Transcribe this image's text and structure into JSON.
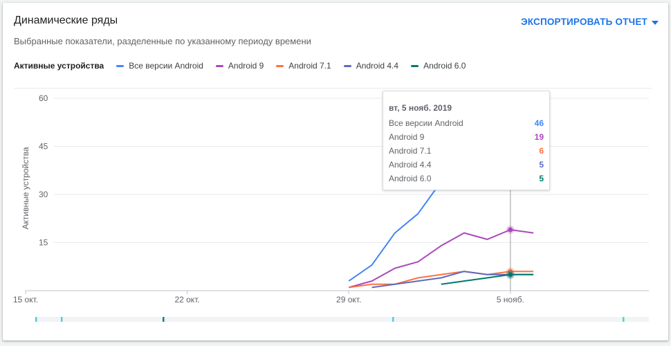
{
  "header": {
    "title": "Динамические ряды",
    "subtitle": "Выбранные показатели, разделенные по указанному периоду времени",
    "export_label": "ЭКСПОРТИРОВАТЬ ОТЧЕТ"
  },
  "legend": {
    "lead": "Активные устройства",
    "items": [
      "Все версии Android",
      "Android 9",
      "Android 7.1",
      "Android 4.4",
      "Android 6.0"
    ]
  },
  "tooltip": {
    "date": "вт, 5 нояб. 2019",
    "rows": [
      {
        "label": "Все версии Android",
        "value": "46"
      },
      {
        "label": "Android 9",
        "value": "19"
      },
      {
        "label": "Android 7.1",
        "value": "6"
      },
      {
        "label": "Android 4.4",
        "value": "5"
      },
      {
        "label": "Android 6.0",
        "value": "5"
      }
    ]
  },
  "chart_data": {
    "type": "line",
    "title": "",
    "xlabel": "",
    "ylabel": "Активные устройства",
    "ylim": [
      0,
      60
    ],
    "yticks": [
      15,
      30,
      45,
      60
    ],
    "xlim": [
      "2019-10-15",
      "2019-11-11"
    ],
    "xticks": [
      {
        "date": "2019-10-15",
        "label": "15 окт."
      },
      {
        "date": "2019-10-22",
        "label": "22 окт."
      },
      {
        "date": "2019-10-29",
        "label": "29 окт."
      },
      {
        "date": "2019-11-05",
        "label": "5 нояб."
      }
    ],
    "highlight_date": "2019-11-05",
    "grid": true,
    "legend_position": "top",
    "series": [
      {
        "name": "Все версии Android",
        "color": "#4285f4",
        "x": [
          "2019-10-29",
          "2019-10-30",
          "2019-10-31",
          "2019-11-01",
          "2019-11-02",
          "2019-11-03",
          "2019-11-04",
          "2019-11-05",
          "2019-11-06"
        ],
        "values": [
          3,
          8,
          18,
          24,
          34,
          40,
          38,
          46,
          45
        ]
      },
      {
        "name": "Android 9",
        "color": "#ab47bc",
        "x": [
          "2019-10-29",
          "2019-10-30",
          "2019-10-31",
          "2019-11-01",
          "2019-11-02",
          "2019-11-03",
          "2019-11-04",
          "2019-11-05",
          "2019-11-06"
        ],
        "values": [
          1,
          3,
          7,
          9,
          14,
          18,
          16,
          19,
          18
        ]
      },
      {
        "name": "Android 7.1",
        "color": "#ff7043",
        "x": [
          "2019-10-29",
          "2019-10-30",
          "2019-10-31",
          "2019-11-01",
          "2019-11-02",
          "2019-11-03",
          "2019-11-04",
          "2019-11-05",
          "2019-11-06"
        ],
        "values": [
          1,
          2,
          2,
          4,
          5,
          6,
          5,
          6,
          6
        ]
      },
      {
        "name": "Android 4.4",
        "color": "#5c6bc0",
        "x": [
          "2019-10-30",
          "2019-10-31",
          "2019-11-01",
          "2019-11-02",
          "2019-11-03",
          "2019-11-04",
          "2019-11-05",
          "2019-11-06"
        ],
        "values": [
          1,
          2,
          3,
          4,
          6,
          5,
          5,
          5
        ]
      },
      {
        "name": "Android 6.0",
        "color": "#00796b",
        "x": [
          "2019-11-02",
          "2019-11-03",
          "2019-11-04",
          "2019-11-05",
          "2019-11-06"
        ],
        "values": [
          2,
          3,
          4,
          5,
          5
        ]
      }
    ]
  }
}
